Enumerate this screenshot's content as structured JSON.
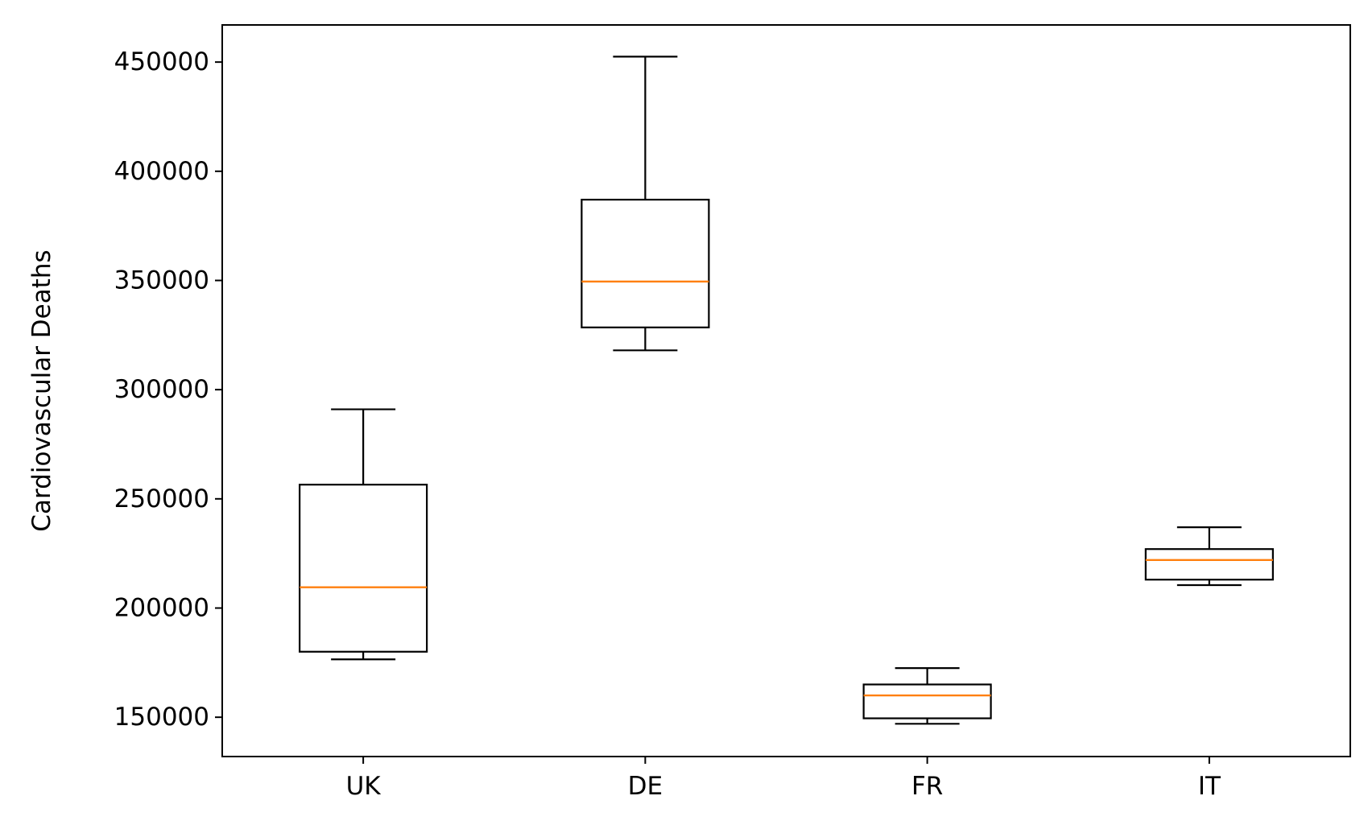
{
  "chart_data": {
    "type": "boxplot",
    "title": "",
    "xlabel": "",
    "ylabel": "Cardiovascular Deaths",
    "ylim": [
      132000,
      467000
    ],
    "y_ticks": [
      150000,
      200000,
      250000,
      300000,
      350000,
      400000,
      450000
    ],
    "y_tick_labels": [
      "150000",
      "200000",
      "250000",
      "300000",
      "350000",
      "400000",
      "450000"
    ],
    "categories": [
      "UK",
      "DE",
      "FR",
      "IT"
    ],
    "boxes": [
      {
        "category": "UK",
        "whislo": 176500,
        "q1": 180000,
        "median": 209500,
        "q3": 256500,
        "whishi": 291000
      },
      {
        "category": "DE",
        "whislo": 318000,
        "q1": 328500,
        "median": 349500,
        "q3": 387000,
        "whishi": 452500
      },
      {
        "category": "FR",
        "whislo": 147000,
        "q1": 149500,
        "median": 160000,
        "q3": 165000,
        "whishi": 172500
      },
      {
        "category": "IT",
        "whislo": 210500,
        "q1": 213000,
        "median": 222000,
        "q3": 227000,
        "whishi": 237000
      }
    ],
    "colors": {
      "box": "#000000",
      "median": "#ff7f0e",
      "whisker": "#000000",
      "frame": "#000000"
    },
    "grid": false,
    "legend": "none"
  }
}
